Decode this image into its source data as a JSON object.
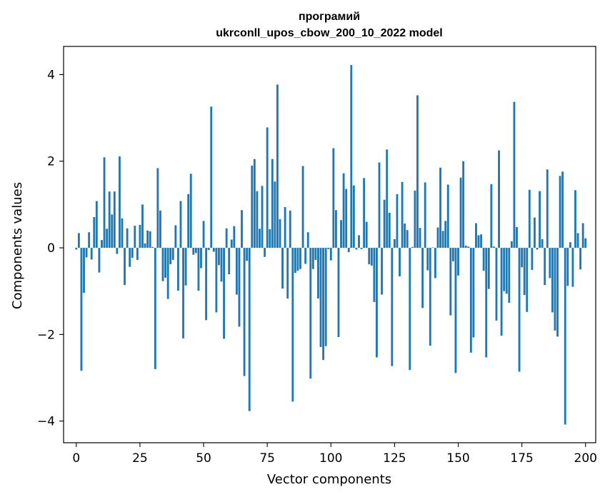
{
  "chart_data": {
    "type": "bar",
    "title": [
      "програмий",
      "ukrconll_upos_cbow_200_10_2022 model"
    ],
    "xlabel": "Vector components",
    "ylabel": "Components values",
    "xlim": [
      -5,
      204
    ],
    "ylim": [
      -4.5,
      4.65
    ],
    "xticks": [
      0,
      25,
      50,
      75,
      100,
      125,
      150,
      175,
      200
    ],
    "yticks": [
      -4,
      -2,
      0,
      2,
      4
    ],
    "grid": false,
    "bar_color": "#1f77b4",
    "values": [
      -0.04,
      0.34,
      -2.84,
      -1.04,
      -0.22,
      0.36,
      -0.27,
      0.71,
      1.08,
      -0.57,
      0.18,
      2.09,
      0.44,
      1.3,
      0.77,
      1.3,
      -0.14,
      2.11,
      0.68,
      -0.86,
      0.45,
      -0.44,
      -0.23,
      0.51,
      -0.28,
      0.53,
      1.0,
      0.1,
      0.4,
      0.38,
      0.02,
      -2.8,
      1.84,
      0.86,
      -0.77,
      -0.69,
      -1.18,
      -0.38,
      -0.28,
      0.52,
      -0.99,
      1.08,
      -2.09,
      -0.87,
      1.24,
      1.71,
      -0.16,
      -0.12,
      -0.99,
      -0.47,
      0.62,
      -1.67,
      -0.05,
      3.26,
      -0.09,
      -1.49,
      -0.4,
      -0.78,
      -2.1,
      0.45,
      -0.61,
      0.19,
      0.5,
      -1.08,
      -1.82,
      0.87,
      -2.96,
      -0.3,
      -3.77,
      1.9,
      2.05,
      1.31,
      0.44,
      1.43,
      -0.21,
      2.78,
      0.43,
      2.05,
      1.53,
      3.77,
      0.66,
      -0.94,
      0.94,
      -1.17,
      0.86,
      -3.55,
      -0.58,
      -0.53,
      -0.49,
      1.89,
      -0.37,
      0.36,
      -3.02,
      -0.49,
      -0.28,
      -1.17,
      -2.29,
      -2.59,
      -2.27,
      -0.03,
      -0.29,
      2.3,
      0.87,
      -2.06,
      0.64,
      1.72,
      1.36,
      -0.1,
      4.22,
      1.44,
      -0.04,
      0.29,
      -0.03,
      1.61,
      0.6,
      -0.38,
      -0.41,
      -1.25,
      -2.53,
      1.97,
      -1.08,
      1.11,
      2.27,
      0.81,
      -2.73,
      0.2,
      1.24,
      -0.66,
      1.52,
      0.56,
      0.41,
      -2.82,
      0.02,
      1.32,
      3.52,
      0.46,
      -1.39,
      1.51,
      -0.52,
      -2.26,
      0.01,
      -0.7,
      0.47,
      1.85,
      0.39,
      0.62,
      1.46,
      -1.56,
      -0.31,
      -2.89,
      -0.64,
      1.62,
      2.0,
      0.05,
      0.03,
      -2.42,
      -2.07,
      0.57,
      0.29,
      0.31,
      -0.53,
      -2.53,
      -0.95,
      1.47,
      0.03,
      -1.68,
      2.25,
      -2.03,
      -1.0,
      -1.06,
      -1.27,
      0.15,
      3.37,
      0.48,
      -2.86,
      -0.45,
      -1.09,
      -1.48,
      1.34,
      -0.51,
      0.7,
      -0.04,
      1.31,
      0.2,
      -0.86,
      1.81,
      -0.7,
      -1.49,
      -1.91,
      -2.05,
      1.66,
      1.76,
      -4.08,
      -0.88,
      0.13,
      -0.9,
      1.33,
      0.34,
      -0.5,
      0.57,
      0.22
    ]
  }
}
